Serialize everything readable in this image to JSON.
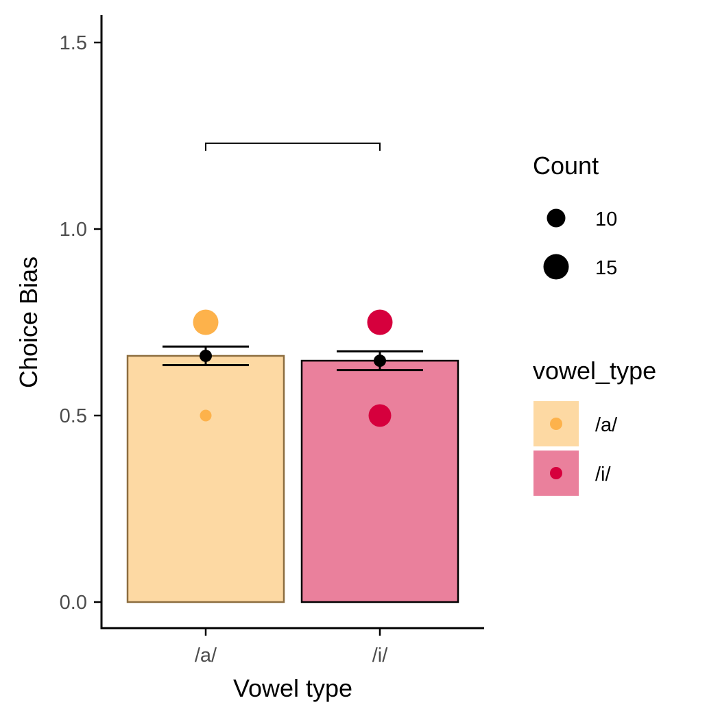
{
  "chart_data": {
    "type": "bar",
    "xlabel": "Vowel type",
    "ylabel": "Choice Bias",
    "ylim": [
      -0.07,
      1.58
    ],
    "yticks": [
      0.0,
      0.5,
      1.0,
      1.5
    ],
    "ytick_labels": [
      "0.0",
      "0.5",
      "1.0",
      "1.5"
    ],
    "categories": [
      "/a/",
      "/i/"
    ],
    "bars": [
      {
        "category": "/a/",
        "mean": 0.66,
        "se_low": 0.635,
        "se_high": 0.685,
        "fill": "#fdd9a3",
        "stroke": "#8c6d3f"
      },
      {
        "category": "/i/",
        "mean": 0.647,
        "se_low": 0.622,
        "se_high": 0.672,
        "fill": "#ea809c",
        "stroke": "#000000"
      }
    ],
    "points": [
      {
        "category": "/a/",
        "value": 0.75,
        "count": 15,
        "color": "#fdb24b"
      },
      {
        "category": "/a/",
        "value": 0.5,
        "count": 5,
        "color": "#fdb24b"
      },
      {
        "category": "/i/",
        "value": 0.75,
        "count": 15,
        "color": "#d6003d"
      },
      {
        "category": "/i/",
        "value": 0.5,
        "count": 13,
        "color": "#d6003d"
      }
    ],
    "significance_bracket": {
      "from": "/a/",
      "to": "/i/",
      "y": 1.23,
      "label": ""
    },
    "legend_count": {
      "title": "Count",
      "entries": [
        {
          "label": "10",
          "count": 10
        },
        {
          "label": "15",
          "count": 15
        }
      ]
    },
    "legend_vowel": {
      "title": "vowel_type",
      "entries": [
        {
          "label": "/a/",
          "fill": "#fdd9a3",
          "color": "#fdb24b"
        },
        {
          "label": "/i/",
          "fill": "#ea809c",
          "color": "#d6003d"
        }
      ]
    },
    "grid": false,
    "legend_position": "right"
  }
}
